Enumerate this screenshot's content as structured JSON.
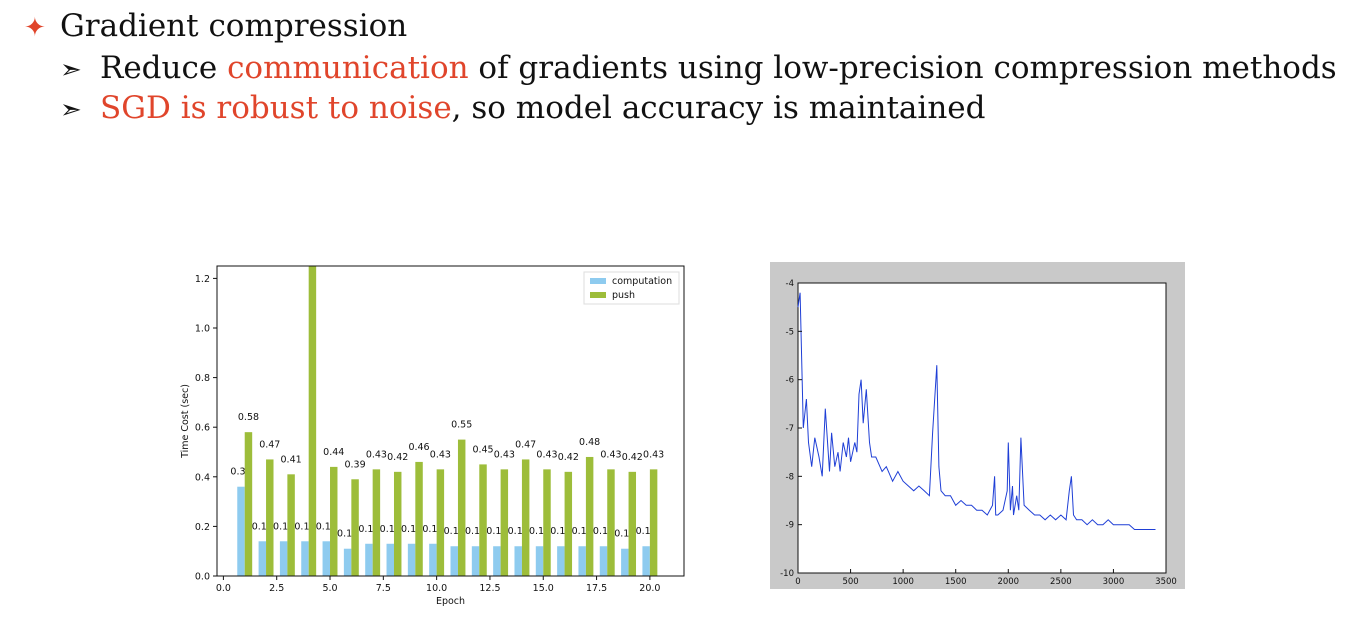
{
  "slide": {
    "bullet_star": "✦",
    "bullet_title": "Gradient compression",
    "sub_arrow": "➣",
    "sub1": {
      "pre": "Reduce ",
      "hl": "communication",
      "post": " of gradients using low-precision compression methods"
    },
    "sub2": {
      "hl": "SGD is robust to noise",
      "post": ", so model accuracy is maintained"
    },
    "highlight_color": "#e0452b"
  },
  "chart_data": [
    {
      "type": "bar",
      "title": "",
      "xlabel": "Epoch",
      "ylabel": "Time Cost (sec)",
      "xlim": [
        -0.3,
        21.6
      ],
      "ylim": [
        0,
        1.25
      ],
      "xticks": [
        "0.0",
        "2.5",
        "5.0",
        "7.5",
        "10.0",
        "12.5",
        "15.0",
        "17.5",
        "20.0"
      ],
      "xtick_values": [
        0,
        2.5,
        5,
        7.5,
        10,
        12.5,
        15,
        17.5,
        20
      ],
      "yticks": [
        "0.0",
        "0.2",
        "0.4",
        "0.6",
        "0.8",
        "1.0",
        "1.2"
      ],
      "ytick_values": [
        0,
        0.2,
        0.4,
        0.6,
        0.8,
        1.0,
        1.2
      ],
      "x": [
        1,
        2,
        3,
        4,
        5,
        6,
        7,
        8,
        9,
        10,
        11,
        12,
        13,
        14,
        15,
        16,
        17,
        18,
        19,
        20
      ],
      "series": [
        {
          "name": "computation",
          "color": "#8ecbef",
          "values": [
            0.36,
            0.14,
            0.14,
            0.14,
            0.14,
            0.11,
            0.13,
            0.13,
            0.13,
            0.13,
            0.12,
            0.12,
            0.12,
            0.12,
            0.12,
            0.12,
            0.12,
            0.12,
            0.11,
            0.12
          ],
          "labels": [
            "0.36",
            "0.14",
            "0.14",
            "0.14",
            "0.14",
            "0.11",
            "0.13",
            "0.13",
            "0.13",
            "0.13",
            "0.12",
            "0.12",
            "0.12",
            "0.12",
            "0.12",
            "0.12",
            "0.12",
            "0.12",
            "0.11",
            "0.12"
          ]
        },
        {
          "name": "push",
          "color": "#9dbd3a",
          "values": [
            0.58,
            0.47,
            0.41,
            1.25,
            0.44,
            0.39,
            0.43,
            0.42,
            0.46,
            0.43,
            0.55,
            0.45,
            0.43,
            0.47,
            0.43,
            0.42,
            0.48,
            0.43,
            0.42,
            0.43
          ],
          "labels": [
            "0.58",
            "0.47",
            "0.41",
            "",
            "0.44",
            "0.39",
            "0.43",
            "0.42",
            "0.46",
            "0.43",
            "0.55",
            "0.45",
            "0.43",
            "0.47",
            "0.43",
            "0.42",
            "0.48",
            "0.43",
            "0.42",
            "0.43"
          ]
        }
      ],
      "legend": "top-right",
      "grid": false
    },
    {
      "type": "line",
      "title": "",
      "xlabel": "",
      "ylabel": "",
      "xlim": [
        0,
        3500
      ],
      "ylim": [
        -10,
        -4
      ],
      "xticks": [
        "0",
        "500",
        "1000",
        "1500",
        "2000",
        "2500",
        "3000",
        "3500"
      ],
      "xtick_values": [
        0,
        500,
        1000,
        1500,
        2000,
        2500,
        3000,
        3500
      ],
      "yticks": [
        "-4",
        "-5",
        "-6",
        "-7",
        "-8",
        "-9",
        "-10"
      ],
      "ytick_values": [
        -4,
        -5,
        -6,
        -7,
        -8,
        -9,
        -10
      ],
      "grid": false,
      "series": [
        {
          "color": "#1f3fd6",
          "x": [
            0,
            20,
            50,
            80,
            100,
            130,
            160,
            200,
            230,
            260,
            300,
            320,
            350,
            380,
            400,
            430,
            460,
            480,
            500,
            540,
            560,
            580,
            600,
            620,
            650,
            680,
            700,
            740,
            780,
            800,
            840,
            880,
            900,
            950,
            1000,
            1050,
            1100,
            1150,
            1200,
            1250,
            1280,
            1300,
            1320,
            1340,
            1360,
            1400,
            1450,
            1500,
            1550,
            1600,
            1650,
            1700,
            1750,
            1800,
            1850,
            1870,
            1880,
            1900,
            1950,
            1990,
            2000,
            2020,
            2040,
            2050,
            2080,
            2100,
            2120,
            2150,
            2200,
            2250,
            2300,
            2350,
            2400,
            2450,
            2500,
            2550,
            2580,
            2600,
            2620,
            2650,
            2700,
            2750,
            2800,
            2850,
            2900,
            2950,
            3000,
            3050,
            3100,
            3150,
            3200,
            3250,
            3300,
            3350,
            3400
          ],
          "y": [
            -4.5,
            -4.2,
            -7.0,
            -6.4,
            -7.3,
            -7.8,
            -7.2,
            -7.6,
            -8.0,
            -6.6,
            -7.9,
            -7.1,
            -7.8,
            -7.5,
            -7.9,
            -7.3,
            -7.6,
            -7.2,
            -7.7,
            -7.3,
            -7.5,
            -6.3,
            -6.0,
            -6.9,
            -6.2,
            -7.3,
            -7.6,
            -7.6,
            -7.8,
            -7.9,
            -7.8,
            -8.0,
            -8.1,
            -7.9,
            -8.1,
            -8.2,
            -8.3,
            -8.2,
            -8.3,
            -8.4,
            -7.1,
            -6.4,
            -5.7,
            -7.8,
            -8.3,
            -8.4,
            -8.4,
            -8.6,
            -8.5,
            -8.6,
            -8.6,
            -8.7,
            -8.7,
            -8.8,
            -8.6,
            -8.0,
            -8.8,
            -8.8,
            -8.7,
            -8.3,
            -7.3,
            -8.7,
            -8.2,
            -8.8,
            -8.4,
            -8.7,
            -7.2,
            -8.6,
            -8.7,
            -8.8,
            -8.8,
            -8.9,
            -8.8,
            -8.9,
            -8.8,
            -8.9,
            -8.3,
            -8.0,
            -8.8,
            -8.9,
            -8.9,
            -9.0,
            -8.9,
            -9.0,
            -9.0,
            -8.9,
            -9.0,
            -9.0,
            -9.0,
            -9.0,
            -9.1,
            -9.1,
            -9.1,
            -9.1,
            -9.1
          ]
        }
      ]
    }
  ]
}
